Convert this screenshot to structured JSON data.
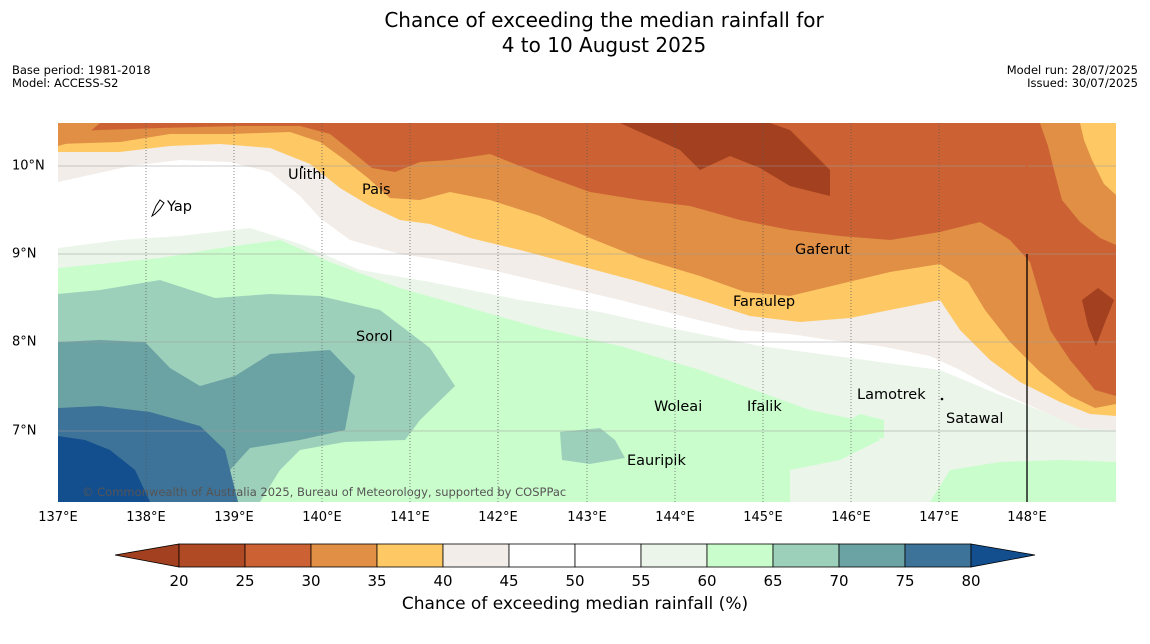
{
  "title_line1": "Chance of exceeding the median rainfall for",
  "title_line2": "4 to 10 August 2025",
  "base_period": "Base period: 1981-2018",
  "model": "Model: ACCESS-S2",
  "model_run": "Model run: 28/07/2025",
  "issued": "Issued: 30/07/2025",
  "copyright": "© Commonwealth of Australia 2025, Bureau of Meteorology, supported by COSPPac",
  "longitude_ticks": [
    "137°E",
    "138°E",
    "139°E",
    "140°E",
    "141°E",
    "142°E",
    "143°E",
    "144°E",
    "145°E",
    "146°E",
    "147°E",
    "148°E"
  ],
  "latitude_ticks": [
    "10°N",
    "9°N",
    "8°N",
    "7°N"
  ],
  "places": [
    "Ulithi",
    "Pais",
    "Yap",
    "Gaferut",
    "Faraulep",
    "Sorol",
    "Lamotrek",
    "Woleai",
    "Ifalik",
    "Satawal",
    "Eauripik"
  ],
  "colorbar": {
    "title": "Chance of exceeding median rainfall (%)",
    "labels": [
      "20",
      "25",
      "30",
      "35",
      "40",
      "45",
      "50",
      "55",
      "60",
      "65",
      "70",
      "75",
      "80"
    ],
    "colors": [
      "#a3401f",
      "#b04a25",
      "#cc6233",
      "#e08f45",
      "#fec965",
      "#f2ede8",
      "#ffffff",
      "#ffffff",
      "#ebf5ea",
      "#cafdcc",
      "#9dd0bb",
      "#6ba3a4",
      "#3e7399",
      "#134e8e"
    ]
  }
}
